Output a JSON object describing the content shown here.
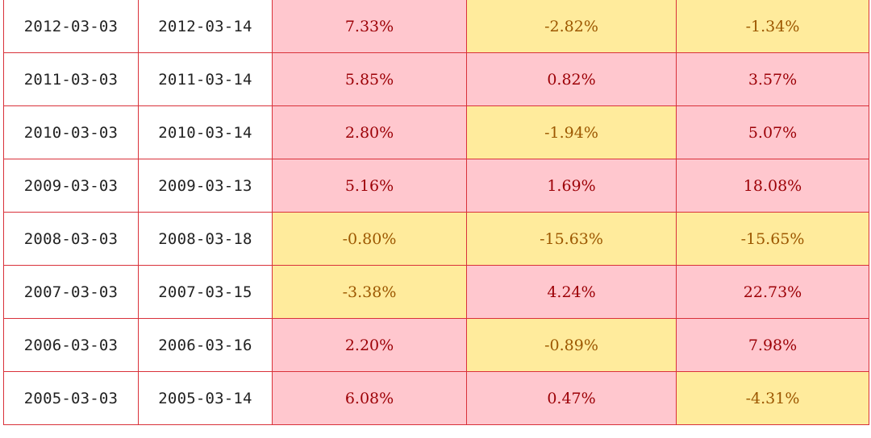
{
  "table": {
    "colors": {
      "positive_fill": "#ffc7ce",
      "positive_text": "#9c0006",
      "negative_fill": "#ffeb9c",
      "negative_text": "#9c5700",
      "border": "#d9313a"
    },
    "rows": [
      {
        "start": "2012-03-03",
        "end": "2012-03-14",
        "r1": "7.33%",
        "r2": "-2.82%",
        "r3": "-1.34%"
      },
      {
        "start": "2011-03-03",
        "end": "2011-03-14",
        "r1": "5.85%",
        "r2": "0.82%",
        "r3": "3.57%"
      },
      {
        "start": "2010-03-03",
        "end": "2010-03-14",
        "r1": "2.80%",
        "r2": "-1.94%",
        "r3": "5.07%"
      },
      {
        "start": "2009-03-03",
        "end": "2009-03-13",
        "r1": "5.16%",
        "r2": "1.69%",
        "r3": "18.08%"
      },
      {
        "start": "2008-03-03",
        "end": "2008-03-18",
        "r1": "-0.80%",
        "r2": "-15.63%",
        "r3": "-15.65%"
      },
      {
        "start": "2007-03-03",
        "end": "2007-03-15",
        "r1": "-3.38%",
        "r2": "4.24%",
        "r3": "22.73%"
      },
      {
        "start": "2006-03-03",
        "end": "2006-03-16",
        "r1": "2.20%",
        "r2": "-0.89%",
        "r3": "7.98%"
      },
      {
        "start": "2005-03-03",
        "end": "2005-03-14",
        "r1": "6.08%",
        "r2": "0.47%",
        "r3": "-4.31%"
      }
    ]
  }
}
